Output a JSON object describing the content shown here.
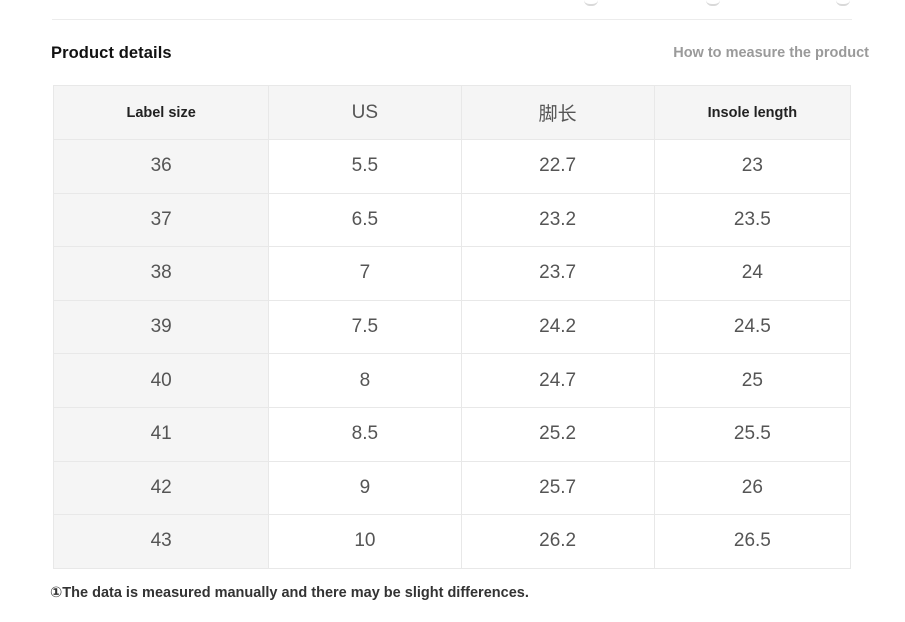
{
  "section": {
    "title": "Product details",
    "measure_link": "How to measure the product"
  },
  "size_table": {
    "headers": [
      "Label size",
      "US",
      "脚长",
      "Insole length"
    ],
    "rows": [
      [
        "36",
        "5.5",
        "22.7",
        "23"
      ],
      [
        "37",
        "6.5",
        "23.2",
        "23.5"
      ],
      [
        "38",
        "7",
        "23.7",
        "24"
      ],
      [
        "39",
        "7.5",
        "24.2",
        "24.5"
      ],
      [
        "40",
        "8",
        "24.7",
        "25"
      ],
      [
        "41",
        "8.5",
        "25.2",
        "25.5"
      ],
      [
        "42",
        "9",
        "25.7",
        "26"
      ],
      [
        "43",
        "10",
        "26.2",
        "26.5"
      ]
    ]
  },
  "footnote": "①The data is measured manually and there may be slight differences."
}
